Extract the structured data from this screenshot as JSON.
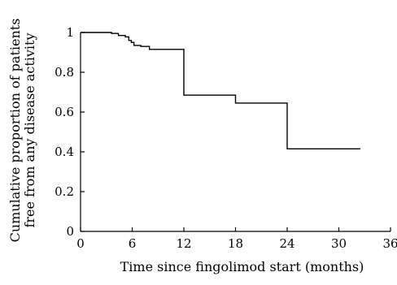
{
  "chart_data": {
    "type": "line",
    "title": "",
    "xlabel": "Time since fingolimod start (months)",
    "ylabel_lines": [
      "Cumulative proportion of patients",
      "free from any disease activity"
    ],
    "xlim": [
      0,
      36
    ],
    "ylim": [
      0,
      1
    ],
    "x_ticks": [
      0,
      6,
      12,
      18,
      24,
      30,
      36
    ],
    "y_ticks": [
      0,
      0.2,
      0.4,
      0.6,
      0.8,
      1
    ],
    "x_tick_labels": [
      "0",
      "6",
      "12",
      "18",
      "24",
      "30",
      "36"
    ],
    "y_tick_labels": [
      "0",
      "0.2",
      "0.4",
      "0.6",
      "0.8",
      "1"
    ],
    "grid": false,
    "step": true,
    "series": [
      {
        "x": [
          0,
          3.3,
          3.6,
          4.4,
          5.2,
          5.6,
          5.9,
          6.2,
          7.0,
          8.0,
          12.0,
          18.0,
          24.0,
          32.5
        ],
        "y": [
          1.0,
          1.0,
          0.995,
          0.985,
          0.978,
          0.96,
          0.95,
          0.935,
          0.93,
          0.915,
          0.685,
          0.645,
          0.415,
          0.415
        ]
      }
    ]
  }
}
